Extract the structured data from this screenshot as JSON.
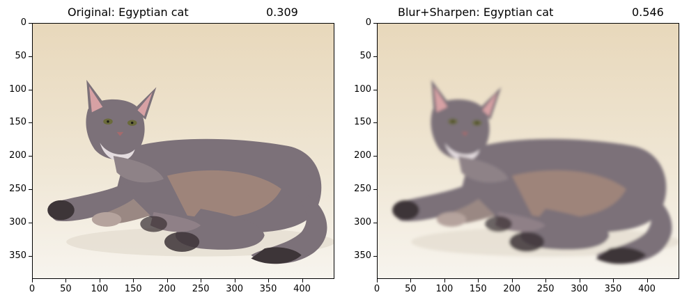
{
  "chart_data": [
    {
      "type": "image",
      "title_label": "Original: Egyptian cat",
      "title_score": "0.309",
      "image": "cat-photo",
      "xlim": [
        0,
        448
      ],
      "ylim": [
        385,
        0
      ],
      "xticks": [
        "0",
        "50",
        "100",
        "150",
        "200",
        "250",
        "300",
        "350",
        "400"
      ],
      "yticks": [
        "0",
        "50",
        "100",
        "150",
        "200",
        "250",
        "300",
        "350"
      ],
      "blur": false
    },
    {
      "type": "image",
      "title_label": "Blur+Sharpen: Egyptian cat",
      "title_score": "0.546",
      "image": "cat-photo-blurred",
      "xlim": [
        0,
        448
      ],
      "ylim": [
        385,
        0
      ],
      "xticks": [
        "0",
        "50",
        "100",
        "150",
        "200",
        "250",
        "300",
        "350",
        "400"
      ],
      "yticks": [
        "0",
        "50",
        "100",
        "150",
        "200",
        "250",
        "300",
        "350"
      ],
      "blur": true
    }
  ],
  "colors": {
    "background_top": "#e8d8bb",
    "background_bottom": "#f7f4ee",
    "cat_body": "#7c7179",
    "cat_warm": "#a4877a",
    "cat_dark": "#3d3438",
    "ear_inner": "#d7a1a4"
  }
}
